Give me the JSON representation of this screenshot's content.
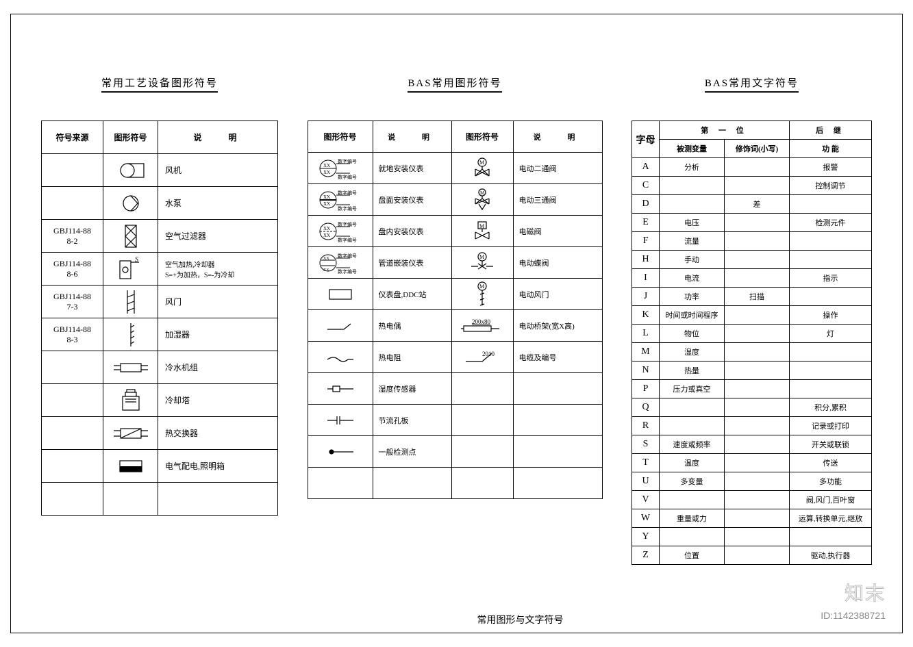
{
  "titles": {
    "t1": "常用工艺设备图形符号",
    "t2": "BAS常用图形符号",
    "t3": "BAS常用文字符号"
  },
  "table1": {
    "headers": {
      "src": "符号来源",
      "sym": "图形符号",
      "desc": "说   明"
    },
    "rows": [
      {
        "src": "",
        "desc": "风机"
      },
      {
        "src": "",
        "desc": "水泵"
      },
      {
        "src": "GBJ114-88\n8-2",
        "desc": "空气过滤器"
      },
      {
        "src": "GBJ114-88\n8-6",
        "desc": "空气加热,冷却器\nS=+为加热，S=-为冷却"
      },
      {
        "src": "GBJ114-88\n7-3",
        "desc": "风门"
      },
      {
        "src": "GBJ114-88\n8-3",
        "desc": "加湿器"
      },
      {
        "src": "",
        "desc": "冷水机组"
      },
      {
        "src": "",
        "desc": "冷却塔"
      },
      {
        "src": "",
        "desc": "热交换器"
      },
      {
        "src": "",
        "desc": "电气配电,照明箱"
      },
      {
        "src": "",
        "desc": ""
      }
    ]
  },
  "table2": {
    "headers": {
      "sym": "图形符号",
      "desc": "说   明",
      "sym2": "图形符号",
      "desc2": "说   明"
    },
    "rows": [
      {
        "desc": "就地安装仪表",
        "desc2": "电动二通阀"
      },
      {
        "desc": "盘面安装仪表",
        "desc2": "电动三通阀"
      },
      {
        "desc": "盘内安装仪表",
        "desc2": "电磁阀"
      },
      {
        "desc": "管道嵌装仪表",
        "desc2": "电动蝶阀"
      },
      {
        "desc": "仪表盘,DDC站",
        "desc2": "电动风门"
      },
      {
        "desc": "热电偶",
        "desc2": "电动桥架(宽X高)"
      },
      {
        "desc": "热电阻",
        "desc2": "电缆及编号"
      },
      {
        "desc": "湿度传感器",
        "desc2": ""
      },
      {
        "desc": "节流孔板",
        "desc2": ""
      },
      {
        "desc": "一般检测点",
        "desc2": ""
      },
      {
        "desc": "",
        "desc2": ""
      }
    ],
    "labels": {
      "bridge": "200x80",
      "cable": "2010",
      "inst": "数字编号"
    }
  },
  "table3": {
    "headers": {
      "c0": "字母",
      "group1": "第 一 位",
      "group2": "后   继",
      "c1": "被测变量",
      "c2": "修饰词(小写)",
      "c3": "功   能"
    },
    "rows": [
      {
        "c0": "A",
        "c1": "分析",
        "c2": "",
        "c3": "报警"
      },
      {
        "c0": "C",
        "c1": "",
        "c2": "",
        "c3": "控制调节"
      },
      {
        "c0": "D",
        "c1": "",
        "c2": "差",
        "c3": ""
      },
      {
        "c0": "E",
        "c1": "电压",
        "c2": "",
        "c3": "检测元件"
      },
      {
        "c0": "F",
        "c1": "流量",
        "c2": "",
        "c3": ""
      },
      {
        "c0": "H",
        "c1": "手动",
        "c2": "",
        "c3": ""
      },
      {
        "c0": "I",
        "c1": "电流",
        "c2": "",
        "c3": "指示"
      },
      {
        "c0": "J",
        "c1": "功率",
        "c2": "扫描",
        "c3": ""
      },
      {
        "c0": "K",
        "c1": "时间或时间程序",
        "c2": "",
        "c3": "操作"
      },
      {
        "c0": "L",
        "c1": "物位",
        "c2": "",
        "c3": "灯"
      },
      {
        "c0": "M",
        "c1": "湿度",
        "c2": "",
        "c3": ""
      },
      {
        "c0": "N",
        "c1": "热量",
        "c2": "",
        "c3": ""
      },
      {
        "c0": "P",
        "c1": "压力或真空",
        "c2": "",
        "c3": ""
      },
      {
        "c0": "Q",
        "c1": "",
        "c2": "",
        "c3": "积分,累积"
      },
      {
        "c0": "R",
        "c1": "",
        "c2": "",
        "c3": "记录或打印"
      },
      {
        "c0": "S",
        "c1": "速度或频率",
        "c2": "",
        "c3": "开关或联锁"
      },
      {
        "c0": "T",
        "c1": "温度",
        "c2": "",
        "c3": "传送"
      },
      {
        "c0": "U",
        "c1": "多变量",
        "c2": "",
        "c3": "多功能"
      },
      {
        "c0": "V",
        "c1": "",
        "c2": "",
        "c3": "阀,风门,百叶窗"
      },
      {
        "c0": "W",
        "c1": "重量或力",
        "c2": "",
        "c3": "运算,转换单元,继放"
      },
      {
        "c0": "Y",
        "c1": "",
        "c2": "",
        "c3": ""
      },
      {
        "c0": "Z",
        "c1": "位置",
        "c2": "",
        "c3": "驱动,执行器"
      }
    ]
  },
  "footer": {
    "logo": "知末",
    "id": "ID:1142388721",
    "caption": "常用图形与文字符号"
  },
  "style": {
    "stroke": "#000000",
    "frame_border": "#000000",
    "bg": "#ffffff"
  }
}
